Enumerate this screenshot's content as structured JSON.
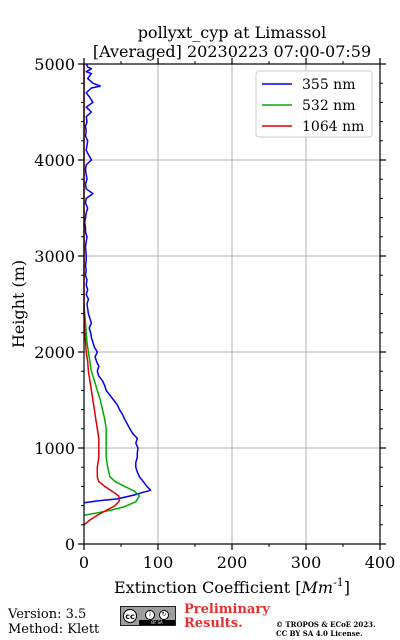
{
  "chart_data": {
    "type": "line",
    "title": "pollyxt_cyp at Limassol",
    "subtitle": "[Averaged] 20230223 07:00-07:59",
    "xlabel": "Extinction Coefficient [",
    "xlabel_unit": "Mm",
    "xlabel_exp": "-1",
    "xlabel_end": "]",
    "ylabel": "Height (m)",
    "xlim": [
      0,
      400
    ],
    "ylim": [
      0,
      5000
    ],
    "xticks": [
      0,
      100,
      200,
      300,
      400
    ],
    "yticks": [
      0,
      1000,
      2000,
      3000,
      4000,
      5000
    ],
    "grid": true,
    "legend_position": "top-right",
    "series": [
      {
        "name": "355 nm",
        "color": "#0000ee",
        "x": [
          0,
          20,
          45,
          62,
          72,
          80,
          86,
          90,
          85,
          80,
          75,
          72,
          70,
          70,
          72,
          72,
          73,
          70,
          72,
          66,
          62,
          55,
          52,
          48,
          45,
          40,
          35,
          30,
          28,
          25,
          20,
          18,
          20,
          17,
          15,
          18,
          14,
          12,
          10,
          9,
          7,
          10,
          8,
          6,
          5,
          4,
          6,
          3,
          5,
          3,
          4,
          2,
          3,
          2,
          3,
          3,
          2,
          4,
          2,
          2,
          1,
          2,
          3,
          5,
          2,
          3,
          12,
          3,
          2,
          4,
          3,
          2,
          3,
          10,
          3,
          5,
          2,
          3,
          2,
          4,
          3,
          10,
          3,
          12,
          8,
          3,
          10,
          22,
          12,
          5,
          10,
          3,
          10,
          5,
          3
        ],
        "y": [
          430,
          450,
          470,
          500,
          520,
          540,
          550,
          560,
          600,
          650,
          700,
          750,
          800,
          850,
          900,
          950,
          1000,
          1050,
          1100,
          1150,
          1200,
          1300,
          1350,
          1400,
          1450,
          1500,
          1550,
          1600,
          1650,
          1700,
          1750,
          1800,
          1850,
          1900,
          1950,
          2000,
          2050,
          2100,
          2150,
          2200,
          2250,
          2300,
          2350,
          2400,
          2450,
          2500,
          2550,
          2600,
          2650,
          2700,
          2750,
          2800,
          2850,
          2900,
          2950,
          3000,
          3100,
          3200,
          3250,
          3300,
          3350,
          3400,
          3450,
          3500,
          3550,
          3600,
          3650,
          3700,
          3750,
          3800,
          3850,
          3900,
          3950,
          4000,
          4100,
          4200,
          4250,
          4300,
          4350,
          4400,
          4450,
          4500,
          4550,
          4600,
          4650,
          4700,
          4750,
          4770,
          4800,
          4850,
          4900,
          4920,
          4950,
          4970,
          5000
        ]
      },
      {
        "name": "532 nm",
        "color": "#00aa00",
        "x": [
          0,
          15,
          35,
          55,
          70,
          75,
          68,
          55,
          42,
          35,
          32,
          30,
          30,
          30,
          30,
          28,
          25,
          22,
          18,
          14,
          10,
          8,
          6,
          4,
          3,
          2,
          1,
          0
        ],
        "y": [
          300,
          320,
          350,
          390,
          440,
          500,
          550,
          600,
          650,
          700,
          800,
          900,
          1000,
          1100,
          1200,
          1300,
          1400,
          1500,
          1600,
          1700,
          1800,
          1900,
          2000,
          2100,
          2200,
          2300,
          2400,
          2500
        ]
      },
      {
        "name": "1064 nm",
        "color": "#dd0000",
        "x": [
          0,
          8,
          18,
          30,
          42,
          48,
          47,
          38,
          28,
          20,
          18,
          18,
          20,
          20,
          20,
          18,
          16,
          14,
          12,
          10,
          8,
          6,
          5,
          3,
          2,
          1,
          0,
          0
        ],
        "y": [
          200,
          250,
          300,
          350,
          400,
          450,
          500,
          550,
          600,
          650,
          700,
          800,
          900,
          1000,
          1100,
          1200,
          1300,
          1400,
          1500,
          1600,
          1700,
          1800,
          1900,
          2000,
          2100,
          2200,
          2400,
          5000
        ]
      }
    ]
  },
  "footer": {
    "version": "Version: 3.5",
    "method": "Method: Klett",
    "cc_label": "cc",
    "cc_strip": "BY   SA",
    "preliminary_line1": "Preliminary",
    "preliminary_line2": "Results.",
    "copyright_line1": "© TROPOS & ECoE 2023.",
    "copyright_line2": "CC BY SA 4.0 License."
  }
}
